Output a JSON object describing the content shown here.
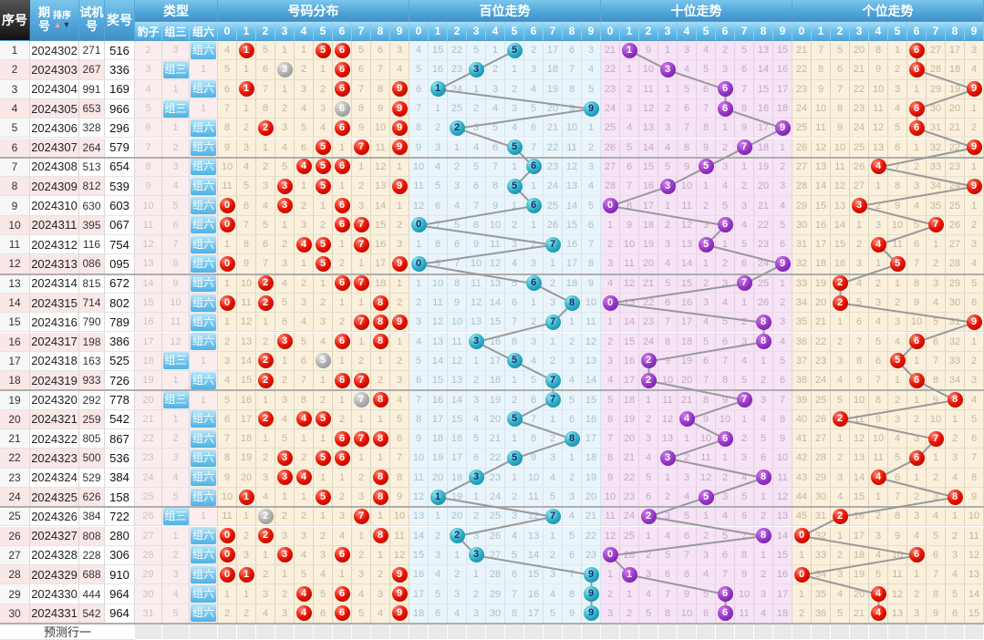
{
  "header": {
    "seq": "序号",
    "period": "期号",
    "sort": "排序",
    "test": "试机号",
    "prize": "奖号",
    "type_group": "类型",
    "type_cols": [
      "豹子",
      "组三",
      "组六"
    ],
    "digits": [
      "0",
      "1",
      "2",
      "3",
      "4",
      "5",
      "6",
      "7",
      "8",
      "9"
    ],
    "sections": [
      {
        "key": "distribution",
        "title": "号码分布"
      },
      {
        "key": "hundreds",
        "title": "百位走势"
      },
      {
        "key": "tens",
        "title": "十位走势"
      },
      {
        "key": "units",
        "title": "个位走势"
      }
    ]
  },
  "footer": {
    "label": "预测行一"
  },
  "colors": {
    "header_blue": "#4F9FD4",
    "header_dark": "#1B1B1B",
    "row_pink": "#FAE7E7",
    "type_cell_bg": "#FBEDED",
    "cream_bg": "#FAF0DB",
    "blue_bg": "#EAF5FB",
    "lavender_bg": "#F6E3F6",
    "miss_gray": "#BBBBBB",
    "line_gray": "#999999",
    "ball_red": "#E81300",
    "ball_gray": "#ACACAC",
    "ball_teal": "#29A9C2",
    "ball_purple": "#9232C4",
    "hit_label_blue": "#7FCBEF",
    "sort_up": "#EBA8A8",
    "sort_down": "#1E3C5C",
    "group_separator": "#AEAEAE",
    "footer_cell": "#E9E9EB"
  },
  "chart_data": {
    "type": "table",
    "note": "3D lottery trend table. Trend cells show periods-since-hit; a ball marks the drawn digit. All cell values derive from rows + initial_miss via the standard miss-count rule (verified against screenshot).",
    "rows": [
      {
        "seq": 1,
        "period": "2024302",
        "test": "271",
        "prize": "516",
        "type": "组六"
      },
      {
        "seq": 2,
        "period": "2024303",
        "test": "267",
        "prize": "336",
        "type": "组三"
      },
      {
        "seq": 3,
        "period": "2024304",
        "test": "991",
        "prize": "169",
        "type": "组六"
      },
      {
        "seq": 4,
        "period": "2024305",
        "test": "653",
        "prize": "966",
        "type": "组三"
      },
      {
        "seq": 5,
        "period": "2024306",
        "test": "328",
        "prize": "296",
        "type": "组六"
      },
      {
        "seq": 6,
        "period": "2024307",
        "test": "264",
        "prize": "579",
        "type": "组六"
      },
      {
        "seq": 7,
        "period": "2024308",
        "test": "513",
        "prize": "654",
        "type": "组六"
      },
      {
        "seq": 8,
        "period": "2024309",
        "test": "812",
        "prize": "539",
        "type": "组六"
      },
      {
        "seq": 9,
        "period": "2024310",
        "test": "630",
        "prize": "603",
        "type": "组六"
      },
      {
        "seq": 10,
        "period": "2024311",
        "test": "395",
        "prize": "067",
        "type": "组六"
      },
      {
        "seq": 11,
        "period": "2024312",
        "test": "116",
        "prize": "754",
        "type": "组六"
      },
      {
        "seq": 12,
        "period": "2024313",
        "test": "086",
        "prize": "095",
        "type": "组六"
      },
      {
        "seq": 13,
        "period": "2024314",
        "test": "815",
        "prize": "672",
        "type": "组六"
      },
      {
        "seq": 14,
        "period": "2024315",
        "test": "714",
        "prize": "802",
        "type": "组六"
      },
      {
        "seq": 15,
        "period": "2024316",
        "test": "790",
        "prize": "789",
        "type": "组六"
      },
      {
        "seq": 16,
        "period": "2024317",
        "test": "198",
        "prize": "386",
        "type": "组六"
      },
      {
        "seq": 17,
        "period": "2024318",
        "test": "163",
        "prize": "525",
        "type": "组三"
      },
      {
        "seq": 18,
        "period": "2024319",
        "test": "933",
        "prize": "726",
        "type": "组六"
      },
      {
        "seq": 19,
        "period": "2024320",
        "test": "292",
        "prize": "778",
        "type": "组三"
      },
      {
        "seq": 20,
        "period": "2024321",
        "test": "259",
        "prize": "542",
        "type": "组六"
      },
      {
        "seq": 21,
        "period": "2024322",
        "test": "805",
        "prize": "867",
        "type": "组六"
      },
      {
        "seq": 22,
        "period": "2024323",
        "test": "500",
        "prize": "536",
        "type": "组六"
      },
      {
        "seq": 23,
        "period": "2024324",
        "test": "529",
        "prize": "384",
        "type": "组六"
      },
      {
        "seq": 24,
        "period": "2024325",
        "test": "626",
        "prize": "158",
        "type": "组六"
      },
      {
        "seq": 25,
        "period": "2024326",
        "test": "384",
        "prize": "722",
        "type": "组三"
      },
      {
        "seq": 26,
        "period": "2024327",
        "test": "808",
        "prize": "280",
        "type": "组六"
      },
      {
        "seq": 27,
        "period": "2024328",
        "test": "228",
        "prize": "306",
        "type": "组六"
      },
      {
        "seq": 28,
        "period": "2024329",
        "test": "688",
        "prize": "910",
        "type": "组六"
      },
      {
        "seq": 29,
        "period": "2024330",
        "test": "444",
        "prize": "964",
        "type": "组六"
      },
      {
        "seq": 30,
        "period": "2024331",
        "test": "542",
        "prize": "964",
        "type": "组六"
      }
    ],
    "initial_miss": {
      "distribution": [
        3,
        0,
        4,
        0,
        0,
        0,
        0,
        4,
        5,
        2
      ],
      "hundreds": [
        3,
        14,
        21,
        4,
        0,
        0,
        1,
        16,
        5,
        2
      ],
      "tens": [
        20,
        0,
        8,
        0,
        2,
        3,
        1,
        4,
        12,
        14
      ],
      "units": [
        20,
        6,
        4,
        19,
        7,
        0,
        0,
        26,
        16,
        2
      ],
      "types": {
        "baozi": 1,
        "zusan": 2,
        "zuliu": 0
      }
    }
  }
}
